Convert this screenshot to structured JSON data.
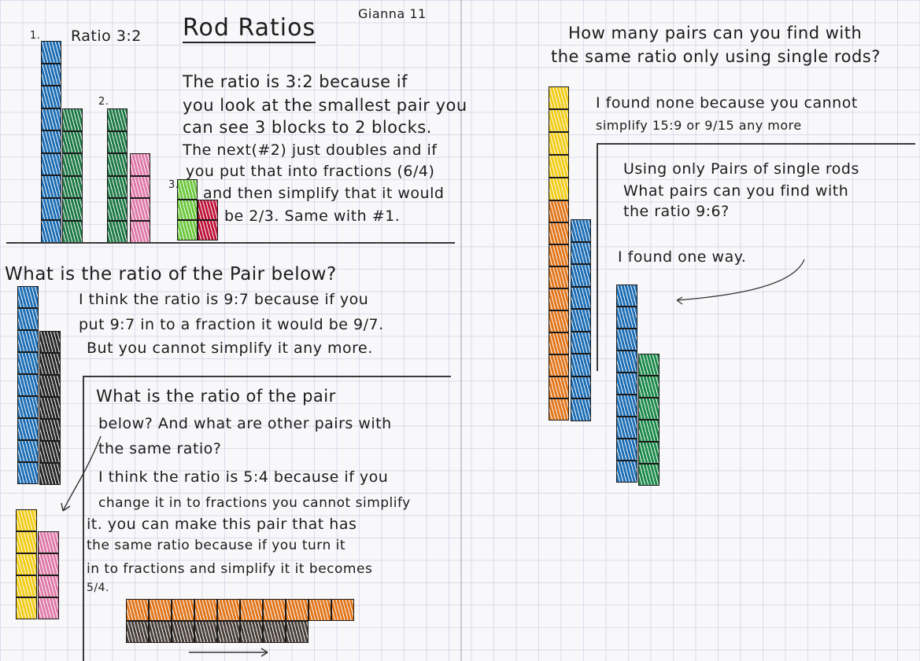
{
  "author": "Gianna 11",
  "title": "Rod Ratios",
  "left": {
    "fig1_label": "1.",
    "fig2_label": "2.",
    "fig3_label": "3.",
    "ratio_label": "Ratio 3:2",
    "explanation": [
      "The ratio is 3:2 because if",
      "you look at the smallest pair you",
      "can see 3 blocks to 2 blocks.",
      "The next(#2) just doubles and if",
      "you put that into fractions (6/4)",
      "and then simplify that it would",
      "be 2/3. Same with #1."
    ],
    "q2_heading": "What is the ratio of the Pair below?",
    "q2_answer": [
      "I think the ratio is 9:7 because if you",
      "put 9:7 in to a fraction it would be 9/7.",
      "But you cannot simplify it any more."
    ],
    "q3_heading": [
      "What is the ratio of the pair",
      "below? And what are other pairs with",
      "the same ratio?"
    ],
    "q3_answer": [
      "I think the ratio is 5:4 because if you",
      "change it in to fractions you cannot simplify",
      "it. you can make this pair that has",
      "the same ratio because if you turn it",
      "in to fractions and simplify it it becomes",
      "5/4."
    ]
  },
  "right": {
    "q1_heading": [
      "How many pairs can you find with",
      "the same ratio only using single rods?"
    ],
    "q1_answer": [
      "I found none because you cannot",
      "simplify 15:9 or 9/15 any more"
    ],
    "q2_heading": [
      "Using only Pairs of single rods",
      "What pairs can you find with",
      "the ratio 9:6?"
    ],
    "q2_answer": "I found one way."
  },
  "colors": {
    "blue": "#1e6fb5",
    "dark_green": "#1d7a45",
    "pink": "#e07aa8",
    "light_green": "#6cc83c",
    "red": "#c0153a",
    "black": "#2a2a2a",
    "yellow": "#f2cd16",
    "orange": "#e2761a",
    "medium_green": "#1c8a4a",
    "dark_brown": "#4a403a"
  }
}
